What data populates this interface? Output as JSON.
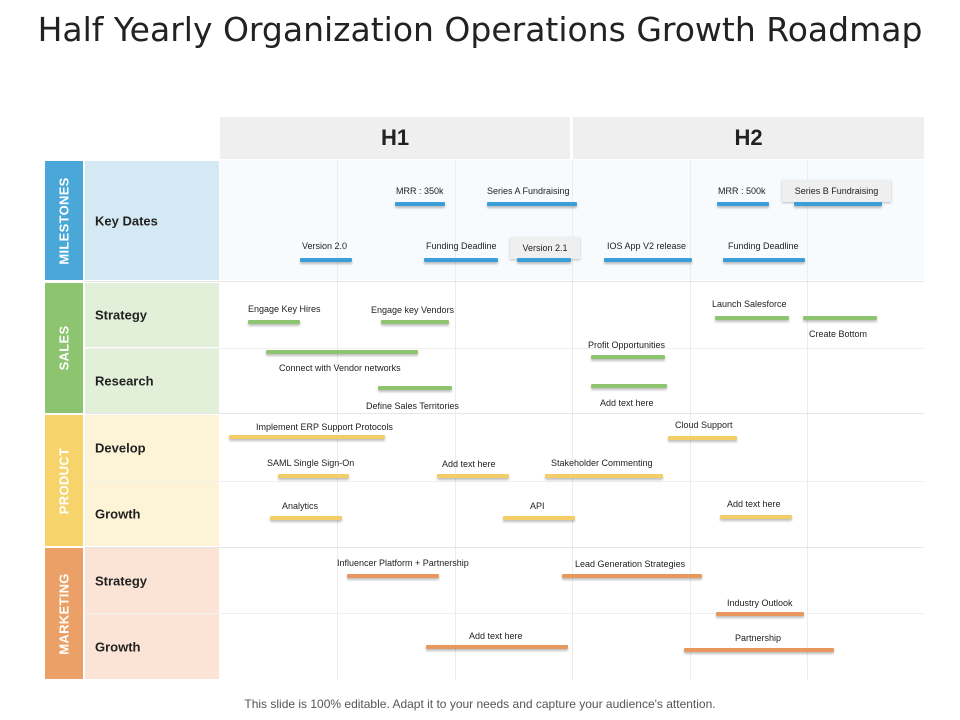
{
  "title": "Half Yearly Organization Operations Growth Roadmap",
  "footer": "This slide is 100% editable. Adapt it to your needs and capture your audience's attention.",
  "periods": [
    "H1",
    "H2"
  ],
  "categories": [
    {
      "label": "MILESTONES",
      "color": "#4aa8d8"
    },
    {
      "label": "SALES",
      "color": "#8cc46f"
    },
    {
      "label": "PRODUCT",
      "color": "#f6d36b"
    },
    {
      "label": "MARKETING",
      "color": "#eba067"
    }
  ],
  "rows": [
    "Key Dates",
    "Strategy",
    "Research",
    "Develop",
    "Growth",
    "Strategy",
    "Growth"
  ],
  "items": {
    "mrr350": "MRR : 350k",
    "seriesA": "Series A Fundraising",
    "mrr500": "MRR : 500k",
    "seriesB": "Series B Fundraising",
    "version20": "Version 2.0",
    "funding1": "Funding Deadline",
    "version21": "Version 2.1",
    "iosApp": "IOS App V2 release",
    "funding2": "Funding Deadline",
    "engageHires": "Engage Key Hires",
    "engageVendors": "Engage key Vendors",
    "launchSalesforce": "Launch Salesforce",
    "createBottom": "Create Bottom",
    "profitOpp": "Profit Opportunities",
    "connectVendor": "Connect with Vendor networks",
    "addText1": "Add text here",
    "defineSales": "Define Sales Territories",
    "erp": "Implement ERP Support Protocols",
    "cloudSupport": "Cloud Support",
    "saml": "SAML  Single Sign-On",
    "addText2": "Add text here",
    "stakeholder": "Stakeholder Commenting",
    "analytics": "Analytics",
    "api": "API",
    "addText3": "Add text here",
    "influencer": "Influencer Platform + Partnership",
    "leadGen": "Lead Generation Strategies",
    "industry": "Industry Outlook",
    "addText4": "Add text here",
    "partnership": "Partnership"
  }
}
